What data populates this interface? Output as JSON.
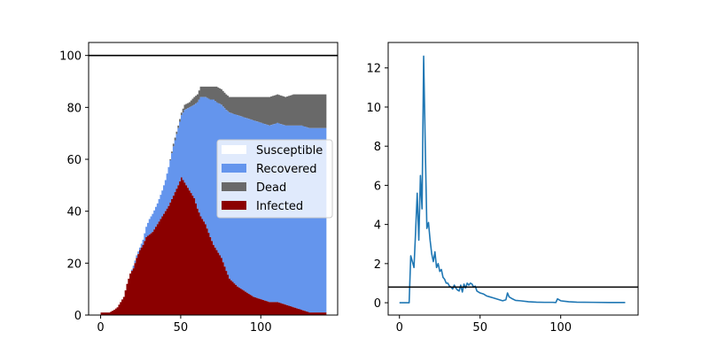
{
  "chart_data": [
    {
      "type": "area",
      "stacked": true,
      "step": true,
      "title": "",
      "xlabel": "",
      "ylabel": "",
      "xlim": [
        -7.5,
        148
      ],
      "ylim": [
        0,
        105
      ],
      "xticks": [
        0,
        50,
        100
      ],
      "yticks": [
        0,
        20,
        40,
        60,
        80,
        100
      ],
      "grid": false,
      "legend_position": "center-right",
      "hline": 100,
      "day_range": [
        0,
        140
      ],
      "keypoints": {
        "x": [
          0,
          5,
          8,
          10,
          12,
          14,
          16,
          18,
          20,
          22,
          24,
          26,
          28,
          30,
          32,
          35,
          38,
          40,
          42,
          45,
          48,
          50,
          52,
          55,
          58,
          60,
          62,
          65,
          68,
          70,
          72,
          75,
          78,
          80,
          85,
          90,
          95,
          100,
          105,
          110,
          115,
          120,
          125,
          130,
          135,
          140
        ],
        "infected": [
          1,
          1,
          2,
          3,
          5,
          7,
          12,
          16,
          18,
          22,
          25,
          27,
          30,
          31,
          32,
          35,
          38,
          40,
          42,
          46,
          50,
          53,
          51,
          48,
          45,
          41,
          38,
          35,
          30,
          27,
          25,
          22,
          17,
          14,
          11,
          9,
          7,
          6,
          5,
          5,
          4,
          3,
          2,
          1,
          1,
          1
        ],
        "recovered": [
          0,
          0,
          0,
          0,
          0,
          0,
          0,
          0,
          1,
          1,
          1,
          2,
          4,
          6,
          7,
          8,
          10,
          12,
          15,
          19,
          22,
          24,
          28,
          32,
          36,
          41,
          46,
          49,
          53,
          56,
          57,
          59,
          62,
          64,
          66,
          67,
          68,
          68,
          68,
          69,
          69,
          70,
          71,
          71,
          71,
          71
        ],
        "dead": [
          0,
          0,
          0,
          0,
          0,
          0,
          0,
          0,
          0,
          0,
          0,
          0,
          0,
          0,
          0,
          0,
          0,
          0,
          0,
          1,
          1,
          1,
          2,
          2,
          3,
          3,
          4,
          4,
          5,
          5,
          6,
          6,
          6,
          6,
          7,
          8,
          9,
          10,
          11,
          11,
          11,
          12,
          12,
          13,
          13,
          13
        ]
      },
      "series": [
        {
          "name": "Susceptible",
          "color": "#ffffff"
        },
        {
          "name": "Recovered",
          "color": "#6495ed"
        },
        {
          "name": "Dead",
          "color": "#696969"
        },
        {
          "name": "Infected",
          "color": "#8b0000"
        }
      ]
    },
    {
      "type": "line",
      "title": "",
      "xlabel": "",
      "ylabel": "",
      "xlim": [
        -7,
        148
      ],
      "ylim": [
        -0.63,
        13.3
      ],
      "xticks": [
        0,
        50,
        100
      ],
      "yticks": [
        0,
        2,
        4,
        6,
        8,
        10,
        12
      ],
      "grid": false,
      "hline": 0.8,
      "color": "#1f77b4",
      "x": [
        0,
        2,
        4,
        5,
        6,
        7,
        8,
        9,
        10,
        11,
        12,
        13,
        14,
        15,
        16,
        17,
        18,
        19,
        20,
        21,
        22,
        23,
        24,
        25,
        26,
        27,
        28,
        29,
        30,
        31,
        32,
        33,
        34,
        35,
        36,
        37,
        38,
        39,
        40,
        41,
        42,
        43,
        44,
        45,
        46,
        47,
        48,
        49,
        50,
        52,
        54,
        56,
        58,
        60,
        62,
        64,
        66,
        67,
        68,
        70,
        72,
        75,
        80,
        85,
        90,
        95,
        97,
        98,
        100,
        105,
        110,
        120,
        130,
        140
      ],
      "y": [
        0,
        0,
        0,
        0,
        0,
        2.4,
        2.1,
        1.8,
        3.6,
        5.6,
        3.2,
        6.5,
        4.8,
        12.6,
        8.0,
        3.8,
        4.1,
        3.2,
        2.5,
        2.1,
        2.6,
        1.8,
        2.0,
        1.6,
        1.7,
        1.3,
        1.2,
        1.0,
        1.0,
        0.85,
        0.8,
        0.7,
        0.9,
        0.75,
        0.65,
        0.6,
        0.9,
        0.55,
        0.95,
        0.75,
        1.0,
        0.9,
        1.0,
        0.95,
        0.8,
        0.85,
        0.6,
        0.55,
        0.5,
        0.45,
        0.35,
        0.3,
        0.25,
        0.2,
        0.15,
        0.1,
        0.15,
        0.5,
        0.3,
        0.2,
        0.12,
        0.1,
        0.05,
        0.03,
        0.02,
        0.02,
        0.01,
        0.2,
        0.1,
        0.05,
        0.03,
        0.02,
        0.01,
        0.01
      ]
    }
  ]
}
